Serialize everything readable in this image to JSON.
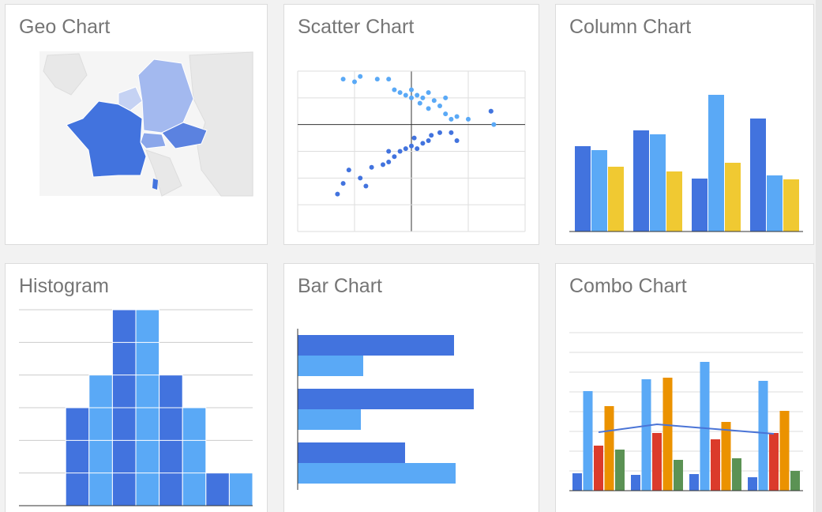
{
  "cards": [
    {
      "title": "Geo Chart",
      "chart": {
        "type": "geo"
      }
    },
    {
      "title": "Scatter Chart",
      "chart": {
        "type": "scatter",
        "xlim": [
          -2,
          2
        ],
        "ylim": [
          -4,
          2
        ],
        "xticks": [
          -2,
          -1,
          0,
          1,
          2
        ],
        "yticks": [
          -4,
          -3,
          -2,
          -1,
          0,
          1,
          2
        ],
        "series": [
          {
            "color": "#5aa9f6",
            "x": [
              -1.2,
              -1,
              -0.9,
              -0.6,
              -0.4,
              -0.3,
              -0.2,
              0,
              0.1,
              0.2,
              0.3,
              0.4,
              0.5,
              0.6,
              0.7,
              0.6,
              0.8,
              1.0,
              1.4,
              1.45,
              0,
              0.15,
              -0.1,
              0.3
            ],
            "y": [
              1.7,
              1.6,
              1.8,
              1.7,
              1.7,
              1.3,
              1.2,
              1.3,
              1.1,
              1.0,
              1.2,
              0.9,
              0.7,
              0.4,
              0.2,
              1.0,
              0.3,
              0.2,
              0.5,
              0,
              1.0,
              0.8,
              1.1,
              0.6
            ]
          },
          {
            "color": "#4273de",
            "x": [
              -1.3,
              -1.2,
              -1.1,
              -0.9,
              -0.8,
              -0.7,
              -0.5,
              -0.4,
              -0.3,
              -0.2,
              -0.1,
              0,
              0.1,
              0.2,
              0.3,
              0.35,
              0.5,
              0.7,
              0.8,
              1.4,
              -0.4,
              0.05
            ],
            "y": [
              -2.6,
              -2.2,
              -1.7,
              -2.0,
              -2.3,
              -1.6,
              -1.5,
              -1.4,
              -1.2,
              -1.0,
              -0.9,
              -0.8,
              -0.9,
              -0.7,
              -0.6,
              -0.4,
              -0.3,
              -0.3,
              -0.6,
              0.5,
              -1.0,
              -0.5
            ]
          }
        ]
      }
    },
    {
      "title": "Column Chart",
      "chart": {
        "type": "column",
        "ylim": [
          0,
          180
        ],
        "series": [
          {
            "color": "#4273de",
            "values": [
              108,
              128,
              67,
              143
            ]
          },
          {
            "color": "#5aa9f6",
            "values": [
              103,
              123,
              173,
              71
            ]
          },
          {
            "color": "#f0c932",
            "values": [
              82,
              76,
              87,
              66
            ]
          }
        ]
      }
    },
    {
      "title": "Histogram",
      "chart": {
        "type": "histogram",
        "bins": [
          0,
          1,
          2,
          3,
          4,
          5,
          6,
          7,
          8,
          9,
          10
        ],
        "values": [
          0,
          0,
          3,
          4,
          6,
          6,
          4,
          3,
          1,
          1
        ],
        "colors": [
          "#4273de",
          "#5aa9f6"
        ],
        "ylim": [
          0,
          6
        ],
        "yticks": [
          0,
          1,
          2,
          3,
          4,
          5,
          6
        ]
      }
    },
    {
      "title": "Bar Chart",
      "chart": {
        "type": "hbar",
        "xlim": [
          0,
          300
        ],
        "series": [
          {
            "color": "#4273de",
            "values": [
              198,
              223,
              136
            ]
          },
          {
            "color": "#5aa9f6",
            "values": [
              83,
              80,
              200
            ]
          }
        ]
      }
    },
    {
      "title": "Combo Chart",
      "chart": {
        "type": "combo",
        "ylim": [
          0,
          205
        ],
        "yticks": [
          0,
          25,
          50,
          75,
          100,
          125,
          150,
          175,
          200
        ],
        "series": [
          {
            "color": "#4273de",
            "values": [
              22,
              20,
              21,
              17
            ]
          },
          {
            "color": "#5aa9f6",
            "values": [
              126,
              141,
              163,
              139
            ]
          },
          {
            "color": "#db3b2b",
            "values": [
              57,
              73,
              65,
              73
            ]
          },
          {
            "color": "#eb9200",
            "values": [
              107,
              143,
              87,
              101
            ]
          },
          {
            "color": "#5b9254",
            "values": [
              52,
              39,
              41,
              25
            ]
          }
        ],
        "line": {
          "color": "#4a74d6",
          "values": [
            74,
            84,
            78,
            72
          ]
        }
      }
    }
  ]
}
